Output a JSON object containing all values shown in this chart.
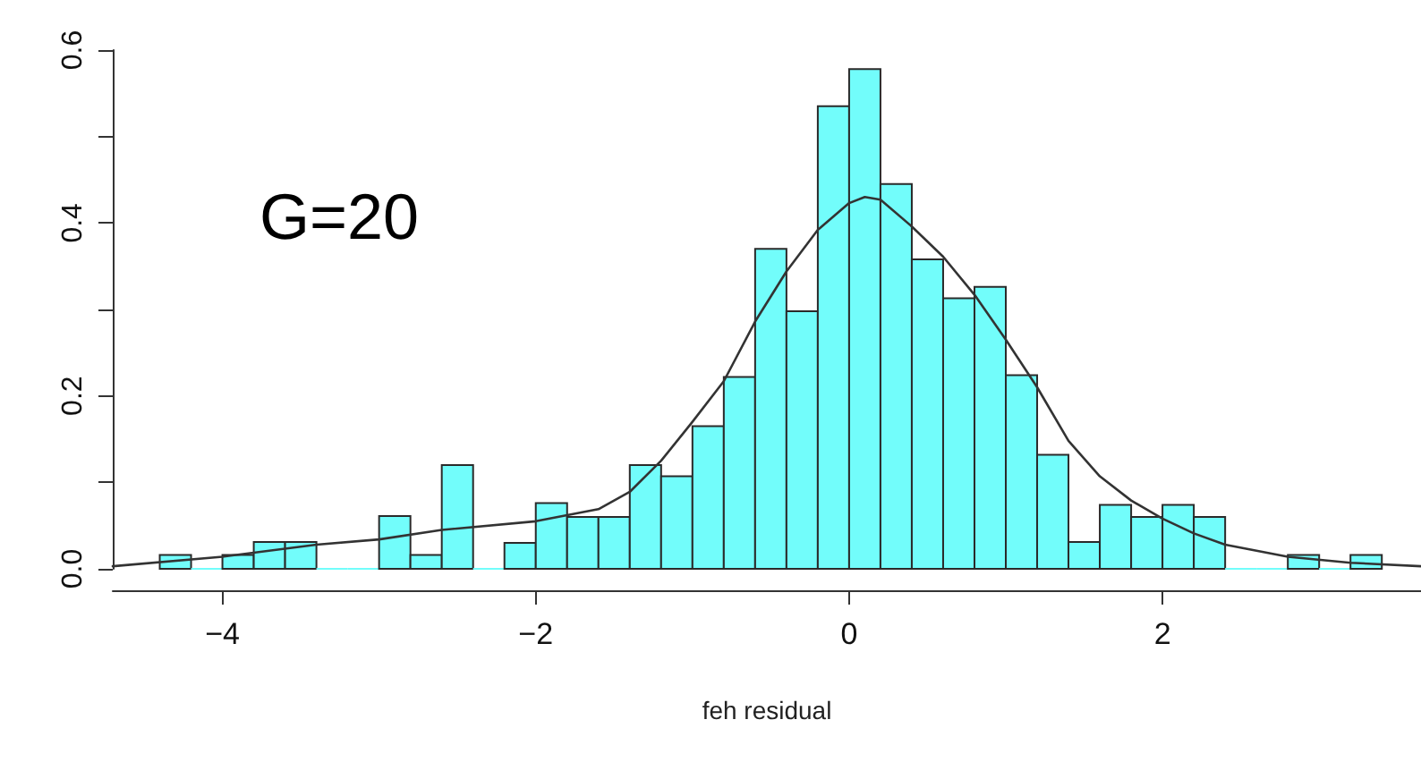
{
  "chart_data": {
    "type": "histogram",
    "xlabel": "feh residual",
    "annotations": [
      "G=20"
    ],
    "xlim": [
      -4.7,
      3.65
    ],
    "ylim": [
      0,
      0.6
    ],
    "xticks": [
      -4,
      -2,
      0,
      2
    ],
    "yticks": [
      {
        "value": 0,
        "label": "0.0"
      },
      {
        "value": 0.1,
        "label": null
      },
      {
        "value": 0.2,
        "label": "0.2"
      },
      {
        "value": 0.3,
        "label": null
      },
      {
        "value": 0.4,
        "label": "0.4"
      },
      {
        "value": 0.5,
        "label": null
      },
      {
        "value": 0.6,
        "label": "0.6"
      }
    ],
    "grid": false,
    "series": [
      {
        "color": "#72fdfb",
        "bins": [
          -4.4,
          -4.2,
          -4.0,
          -3.8,
          -3.6,
          -3.4,
          -3.2,
          -3.0,
          -2.8,
          -2.6,
          -2.4,
          -2.2,
          -2.0,
          -1.8,
          -1.6,
          -1.4,
          -1.2,
          -1.0,
          -0.8,
          -0.6,
          -0.4,
          -0.2,
          0.0,
          0.2,
          0.4,
          0.6,
          0.8,
          1.0,
          1.2,
          1.4,
          1.6,
          1.8,
          2.0,
          2.2,
          2.4,
          2.6,
          2.8,
          3.0,
          3.2,
          3.4
        ],
        "values": [
          0.016,
          0,
          0.016,
          0.031,
          0.031,
          0,
          0,
          0.061,
          0.016,
          0.12,
          0,
          0.03,
          0.076,
          0.06,
          0.06,
          0.12,
          0.107,
          0.165,
          0.222,
          0.37,
          0.298,
          0.535,
          0.578,
          0.445,
          0.358,
          0.313,
          0.326,
          0.224,
          0.132,
          0.031,
          0.074,
          0.06,
          0.074,
          0.06,
          0,
          0,
          0.016,
          0,
          0.016
        ]
      },
      {
        "type": "line",
        "color": "#333333",
        "marker": "none",
        "x": [
          -4.7,
          -4.0,
          -3.4,
          -3.0,
          -2.6,
          -2.0,
          -1.6,
          -1.4,
          -1.2,
          -1.0,
          -0.8,
          -0.6,
          -0.4,
          -0.2,
          0.0,
          0.1,
          0.2,
          0.4,
          0.6,
          0.8,
          1.0,
          1.2,
          1.4,
          1.6,
          1.8,
          2.0,
          2.2,
          2.4,
          2.8,
          3.2,
          3.65
        ],
        "values": [
          0.003,
          0.014,
          0.028,
          0.034,
          0.045,
          0.055,
          0.069,
          0.089,
          0.125,
          0.17,
          0.217,
          0.286,
          0.344,
          0.392,
          0.423,
          0.43,
          0.427,
          0.396,
          0.361,
          0.317,
          0.265,
          0.21,
          0.148,
          0.107,
          0.079,
          0.058,
          0.041,
          0.028,
          0.014,
          0.007,
          0.003
        ]
      }
    ]
  }
}
